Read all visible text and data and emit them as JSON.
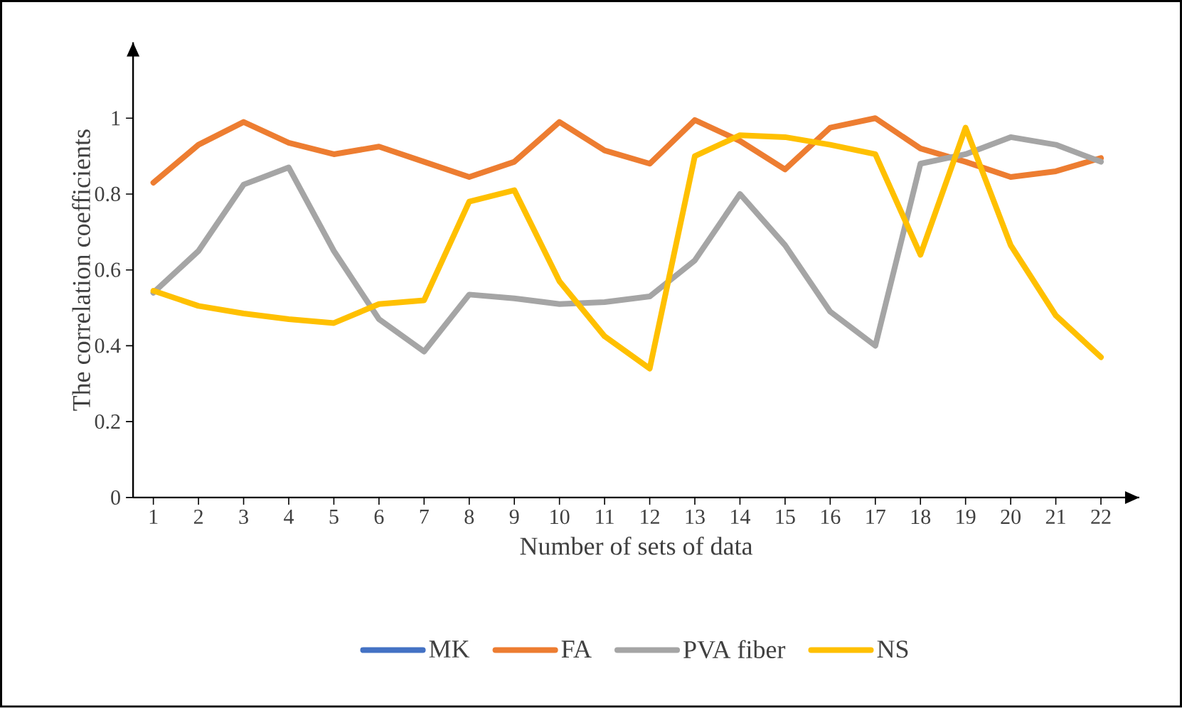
{
  "chart_data": {
    "type": "line",
    "xlabel": "Number of sets of data",
    "ylabel": "The correlation coefficients",
    "categories": [
      "1",
      "2",
      "3",
      "4",
      "5",
      "6",
      "7",
      "8",
      "9",
      "10",
      "11",
      "12",
      "13",
      "14",
      "15",
      "16",
      "17",
      "18",
      "19",
      "20",
      "21",
      "22"
    ],
    "ylim": [
      0,
      1.2
    ],
    "yticks": [
      0,
      0.2,
      0.4,
      0.6,
      0.8,
      1
    ],
    "legend": "bottom",
    "grid": false,
    "series": [
      {
        "name": "MK",
        "color": "#4472c4",
        "values": [
          null,
          null,
          null,
          null,
          null,
          null,
          null,
          null,
          null,
          null,
          null,
          null,
          null,
          null,
          null,
          null,
          null,
          null,
          null,
          null,
          null,
          null
        ]
      },
      {
        "name": "FA",
        "color": "#ed7d31",
        "values": [
          0.83,
          0.93,
          0.99,
          0.935,
          0.905,
          0.925,
          0.885,
          0.845,
          0.885,
          0.99,
          0.915,
          0.88,
          0.995,
          0.94,
          0.865,
          0.975,
          1.0,
          0.92,
          0.885,
          0.845,
          0.86,
          0.895
        ]
      },
      {
        "name": "PVA fiber",
        "color": "#a5a5a5",
        "values": [
          0.54,
          0.65,
          0.825,
          0.87,
          0.65,
          0.47,
          0.385,
          0.535,
          0.525,
          0.51,
          0.515,
          0.53,
          0.625,
          0.8,
          0.665,
          0.49,
          0.4,
          0.88,
          0.905,
          0.95,
          0.93,
          0.885
        ]
      },
      {
        "name": "NS",
        "color": "#ffc000",
        "values": [
          0.545,
          0.505,
          0.485,
          0.47,
          0.46,
          0.51,
          0.52,
          0.78,
          0.81,
          0.57,
          0.425,
          0.34,
          0.9,
          0.955,
          0.95,
          0.93,
          0.905,
          0.64,
          0.975,
          0.665,
          0.48,
          0.37
        ]
      }
    ]
  }
}
